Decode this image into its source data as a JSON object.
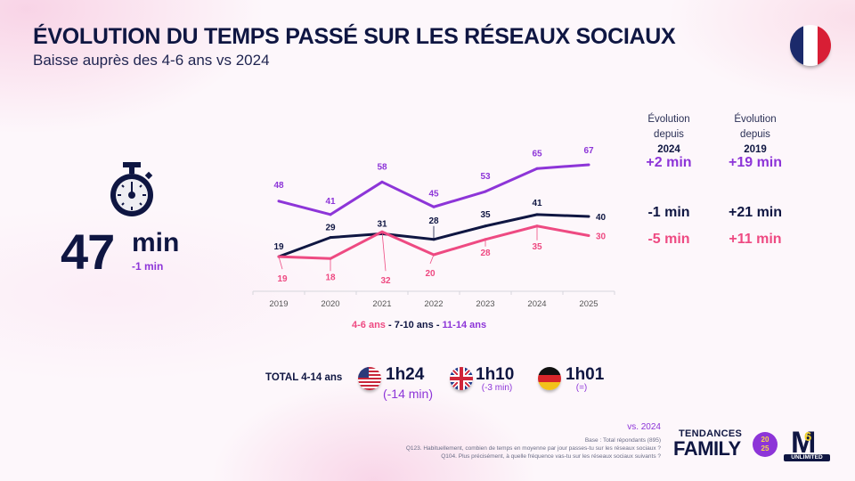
{
  "header": {
    "title": "ÉVOLUTION DU TEMPS PASSÉ SUR LES RÉSEAUX SOCIAUX",
    "subtitle": "Baisse auprès des 4-6 ans vs 2024",
    "country_flag": "france-flag-icon"
  },
  "headline": {
    "icon": "stopwatch-icon",
    "value": "47",
    "unit": "min",
    "delta": "-1 min"
  },
  "evolution_table": {
    "col1_label": "Évolution depuis",
    "col1_year": "2024",
    "col2_label": "Évolution depuis",
    "col2_year": "2019",
    "rows": [
      {
        "series": "11-14 ans",
        "since_2024": "+2 min",
        "since_2019": "+19 min",
        "color": "#8d35d8"
      },
      {
        "series": "7-10 ans",
        "since_2024": "-1 min",
        "since_2019": "+21 min",
        "color": "#0f1642"
      },
      {
        "series": "4-6 ans",
        "since_2024": "-5 min",
        "since_2019": "+11 min",
        "color": "#ee4a82"
      }
    ]
  },
  "chart_data": {
    "type": "line",
    "title": "",
    "xlabel": "",
    "ylabel": "",
    "categories": [
      "2019",
      "2020",
      "2021",
      "2022",
      "2023",
      "2024",
      "2025"
    ],
    "grid": false,
    "legend_position": "bottom",
    "ylim": [
      0,
      70
    ],
    "series": [
      {
        "name": "11-14 ans",
        "color": "#8d35d8",
        "values": [
          48,
          41,
          58,
          45,
          53,
          65,
          67
        ]
      },
      {
        "name": "7-10 ans",
        "color": "#0f1642",
        "values": [
          19,
          29,
          31,
          28,
          35,
          41,
          40
        ]
      },
      {
        "name": "4-6 ans",
        "color": "#ee4a82",
        "values": [
          19,
          18,
          32,
          20,
          28,
          35,
          30
        ]
      }
    ]
  },
  "legend": {
    "items": [
      {
        "label": "4-6 ans",
        "color": "#ee4a82"
      },
      {
        "label": "7-10 ans",
        "color": "#0f1642"
      },
      {
        "label": "11-14 ans",
        "color": "#8d35d8"
      }
    ],
    "separator": " - "
  },
  "totals": {
    "label": "TOTAL 4-14 ans",
    "countries": [
      {
        "flag": "usa-flag-icon",
        "value": "1h24",
        "delta": "(-14 min)"
      },
      {
        "flag": "uk-flag-icon",
        "value": "1h10",
        "delta": "(-3 min)"
      },
      {
        "flag": "germany-flag-icon",
        "value": "1h01",
        "delta": "(=)"
      }
    ]
  },
  "footer": {
    "vs": "vs. 2024",
    "base": "Base : Total répondants (895)",
    "q1": "Q123. Habituellement, combien de temps en moyenne par jour passes-tu sur les réseaux sociaux ?",
    "q2": "Q104. Plus précisément, à quelle fréquence vas-tu sur les réseaux sociaux suivants ?"
  },
  "branding": {
    "tendances": "TENDANCES",
    "family": "FAMILY",
    "year_top": "20",
    "year_bottom": "25",
    "m6": "M",
    "m6_six": "6",
    "unlimited": "UNLIMITED"
  }
}
